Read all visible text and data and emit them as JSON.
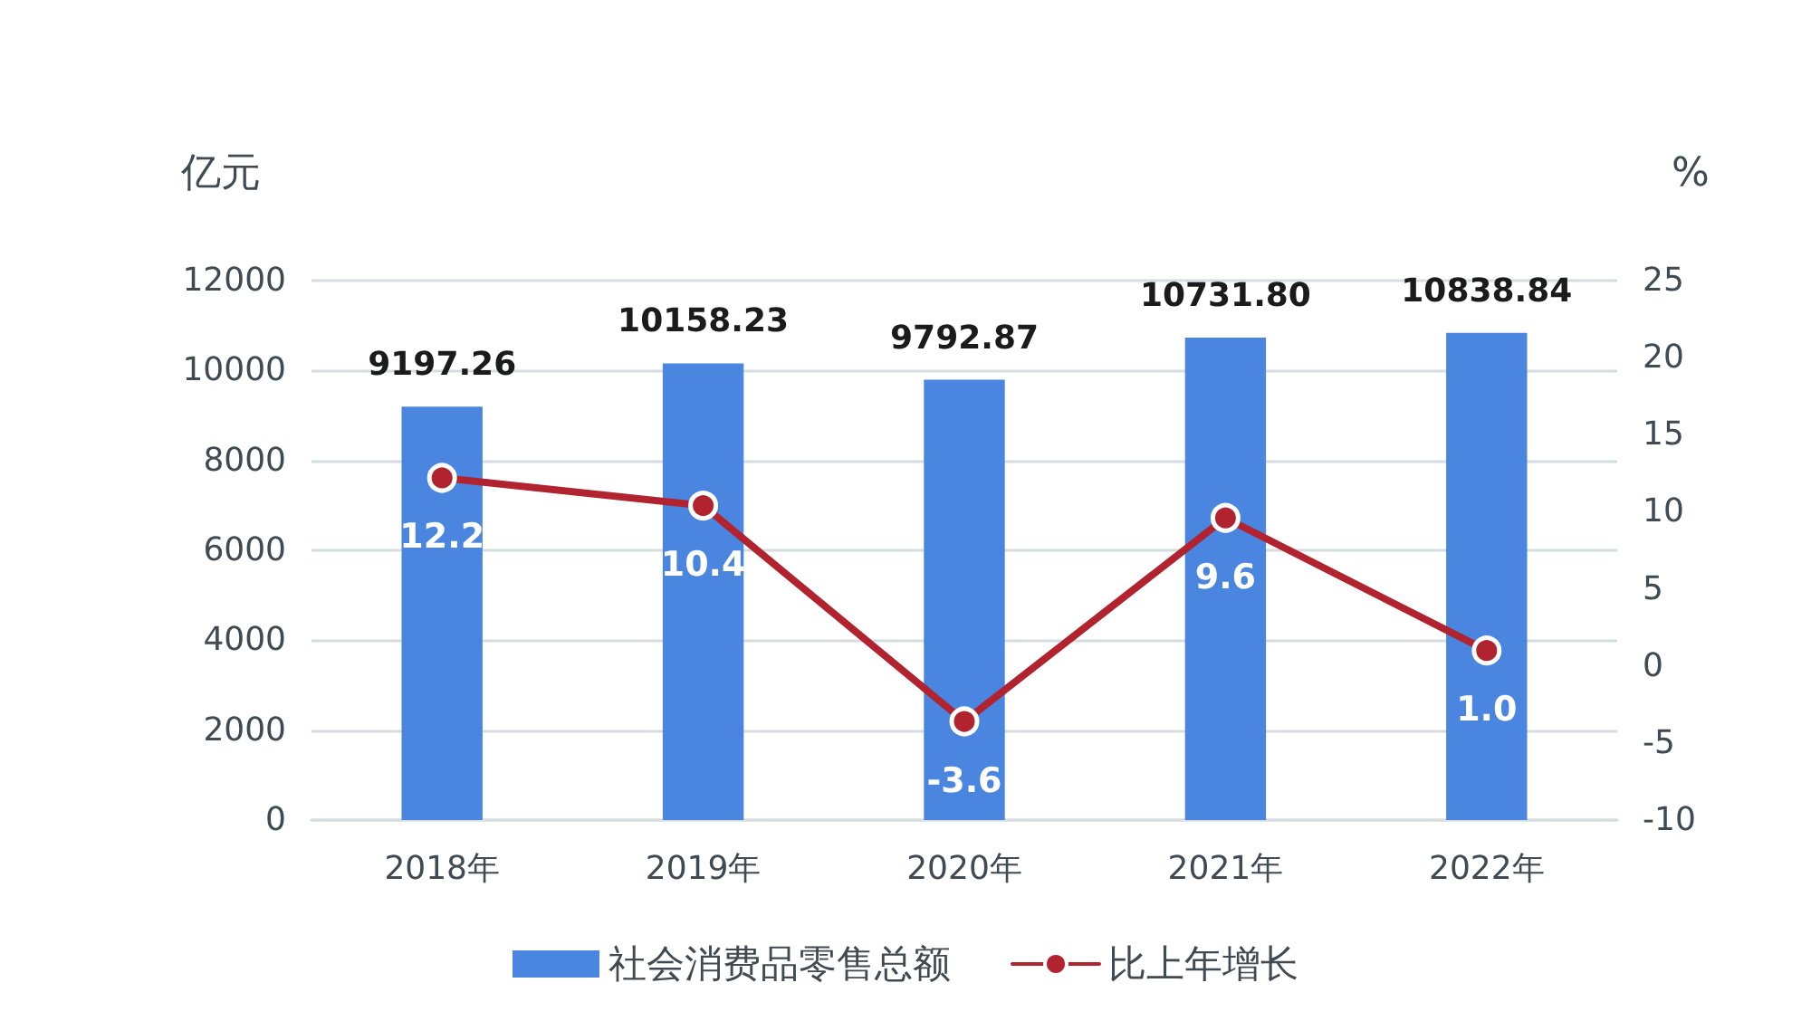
{
  "chart_data": {
    "type": "bar",
    "categories": [
      "2018年",
      "2019年",
      "2020年",
      "2021年",
      "2022年"
    ],
    "ylabel": "亿元",
    "y2label": "%",
    "ylim": [
      0,
      12000
    ],
    "yticks": [
      0,
      2000,
      4000,
      6000,
      8000,
      10000,
      12000
    ],
    "y2lim": [
      -10,
      25
    ],
    "y2ticks": [
      -10,
      -5,
      0,
      5,
      10,
      15,
      20,
      25
    ],
    "grid": "y",
    "legend": "bottom",
    "marker": "circle",
    "line_style": "solid",
    "series": [
      {
        "name": "社会消费品零售总额",
        "color": "#4a86e0",
        "values": [
          9197.26,
          10158.23,
          9792.87,
          10731.8,
          10838.84
        ],
        "value_labels": [
          "9197.26",
          "10158.23",
          "9792.87",
          "10731.80",
          "10838.84"
        ]
      },
      {
        "name": "比上年增长",
        "type": "line",
        "axis": "y2",
        "color": "#b0232f",
        "values": [
          12.2,
          10.4,
          -3.6,
          9.6,
          1.0
        ],
        "value_labels": [
          "12.2",
          "10.4",
          "-3.6",
          "9.6",
          "1.0"
        ]
      }
    ]
  }
}
